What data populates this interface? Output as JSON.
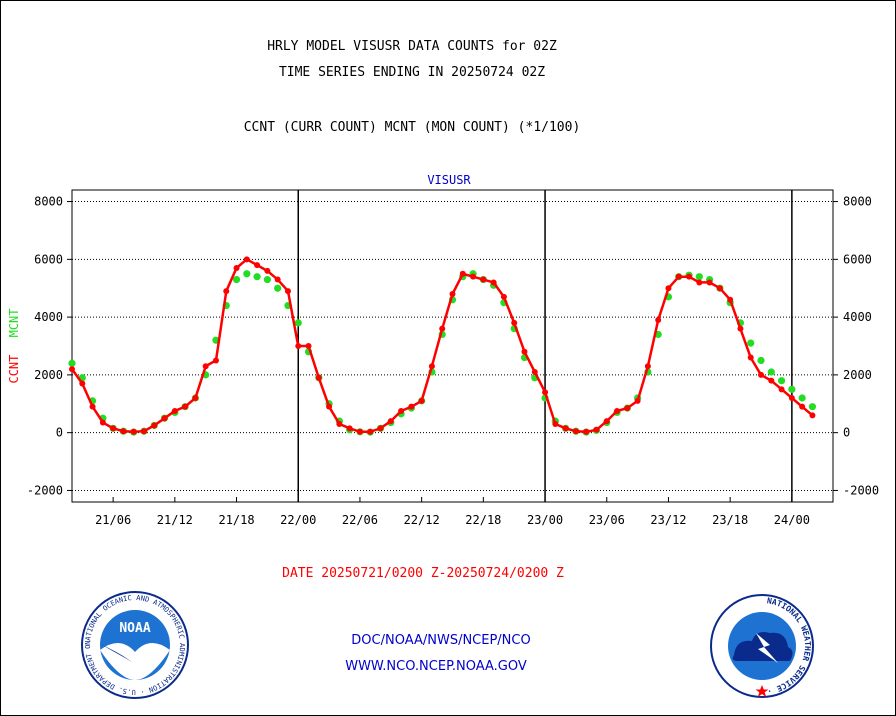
{
  "header": {
    "title_line1": "HRLY MODEL VISUSR DATA COUNTS for 02Z",
    "title_line2": "TIME SERIES ENDING IN 20250724 02Z",
    "legend_line": "CCNT (CURR COUNT) MCNT (MON COUNT) (*1/100)"
  },
  "chart_data": {
    "type": "line",
    "title": "VISUSR",
    "ylabel_series": [
      "CCNT",
      "MCNT"
    ],
    "ylim": [
      -2400,
      8400
    ],
    "yticks": [
      8000,
      6000,
      4000,
      2000,
      0,
      -2000
    ],
    "ytick_labels": [
      "8000",
      "6000",
      "4000",
      "2000",
      "0",
      "-2000"
    ],
    "xlim": [
      0,
      74
    ],
    "xticks": [
      4,
      10,
      16,
      22,
      28,
      34,
      40,
      46,
      52,
      58,
      64,
      70
    ],
    "xtick_labels": [
      "21/06",
      "21/12",
      "21/18",
      "22/00",
      "22/06",
      "22/12",
      "22/18",
      "23/00",
      "23/06",
      "23/12",
      "23/18",
      "24/00"
    ],
    "day_boundaries": [
      22,
      46,
      70
    ],
    "grid": true,
    "series": [
      {
        "name": "CCNT",
        "color": "#ff0000",
        "marker": "filled-circle",
        "x": [
          0,
          1,
          2,
          3,
          4,
          5,
          6,
          7,
          8,
          9,
          10,
          11,
          12,
          13,
          14,
          15,
          16,
          17,
          18,
          19,
          20,
          21,
          22,
          23,
          24,
          25,
          26,
          27,
          28,
          29,
          30,
          31,
          32,
          33,
          34,
          35,
          36,
          37,
          38,
          39,
          40,
          41,
          42,
          43,
          44,
          45,
          46,
          47,
          48,
          49,
          50,
          51,
          52,
          53,
          54,
          55,
          56,
          57,
          58,
          59,
          60,
          61,
          62,
          63,
          64,
          65,
          66,
          67,
          68,
          69,
          70,
          71,
          72
        ],
        "values": [
          2200,
          1700,
          900,
          350,
          150,
          50,
          30,
          50,
          250,
          500,
          750,
          900,
          1200,
          2300,
          2500,
          4900,
          5700,
          6000,
          5800,
          5600,
          5300,
          4900,
          3000,
          3000,
          1900,
          900,
          300,
          150,
          30,
          30,
          150,
          400,
          750,
          900,
          1100,
          2300,
          3600,
          4800,
          5500,
          5400,
          5300,
          5200,
          4700,
          3800,
          2800,
          2100,
          1400,
          300,
          150,
          50,
          30,
          100,
          400,
          750,
          850,
          1100,
          2300,
          3900,
          5000,
          5400,
          5400,
          5200,
          5200,
          5000,
          4600,
          3600,
          2600,
          2000,
          1800,
          1500,
          1200,
          900,
          600
        ]
      },
      {
        "name": "MCNT",
        "color": "#22dd22",
        "marker": "filled-circle",
        "x": [
          0,
          1,
          2,
          3,
          4,
          5,
          6,
          7,
          8,
          9,
          10,
          11,
          12,
          13,
          14,
          15,
          16,
          17,
          18,
          19,
          20,
          21,
          22,
          23,
          24,
          25,
          26,
          27,
          28,
          29,
          30,
          31,
          32,
          33,
          34,
          35,
          36,
          37,
          38,
          39,
          40,
          41,
          42,
          43,
          44,
          45,
          46,
          47,
          48,
          49,
          50,
          51,
          52,
          53,
          54,
          55,
          56,
          57,
          58,
          59,
          60,
          61,
          62,
          63,
          64,
          65,
          66,
          67,
          68,
          69,
          70,
          71,
          72
        ],
        "values": [
          2400,
          1900,
          1100,
          500,
          150,
          50,
          20,
          50,
          250,
          500,
          700,
          900,
          1200,
          2000,
          3200,
          4400,
          5300,
          5500,
          5400,
          5300,
          5000,
          4400,
          3800,
          2800,
          1900,
          1000,
          400,
          100,
          30,
          20,
          150,
          350,
          650,
          850,
          1100,
          2100,
          3400,
          4600,
          5400,
          5500,
          5300,
          5100,
          4500,
          3600,
          2600,
          1900,
          1200,
          400,
          150,
          50,
          20,
          80,
          350,
          700,
          850,
          1200,
          2100,
          3400,
          4700,
          5400,
          5450,
          5400,
          5300,
          5000,
          4500,
          3800,
          3100,
          2500,
          2100,
          1800,
          1500,
          1200,
          900
        ]
      }
    ]
  },
  "footer": {
    "date_range": "DATE 20250721/0200 Z-20250724/0200 Z",
    "org_line": "DOC/NOAA/NWS/NCEP/NCO",
    "url_line": "WWW.NCO.NCEP.NOAA.GOV",
    "noaa_logo_text": "NOAA",
    "noaa_ring_text": "NATIONAL OCEANIC AND ATMOSPHERIC ADMINISTRATION · U.S. DEPARTMENT OF COMMERCE ·",
    "nws_ring_text": "NATIONAL WEATHER SERVICE ·"
  },
  "colors": {
    "ccnt": "#ff0000",
    "mcnt": "#22dd22",
    "title_blue": "#0000cc",
    "date_red": "#ff0000",
    "noaa_blue": "#1e73d2",
    "noaa_navy": "#0a2a8c"
  }
}
